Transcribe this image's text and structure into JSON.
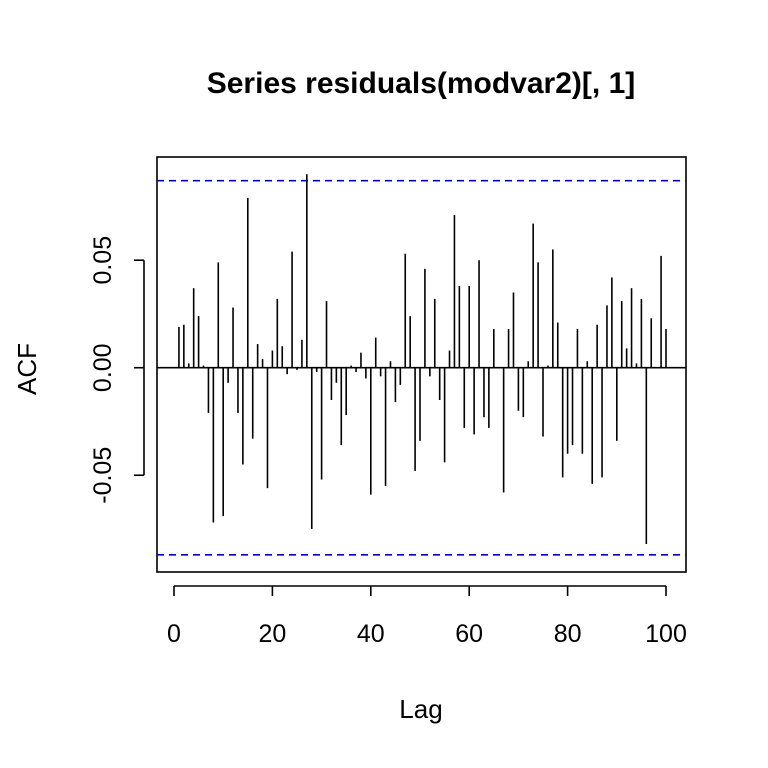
{
  "chart_data": {
    "type": "bar",
    "title": "Series residuals(modvar2)[, 1]",
    "xlabel": "Lag",
    "ylabel": "ACF",
    "xlim": [
      0,
      100
    ],
    "ylim": [
      -0.095,
      0.098
    ],
    "x_ticks": [
      0,
      20,
      40,
      60,
      80,
      100
    ],
    "x_tick_labels": [
      "0",
      "20",
      "40",
      "60",
      "80",
      "100"
    ],
    "y_ticks": [
      -0.05,
      0,
      0.05
    ],
    "y_tick_labels": [
      "-0.05",
      "0.00",
      "0.05"
    ],
    "confidence_bound": 0.087,
    "lags": [
      1,
      2,
      3,
      4,
      5,
      6,
      7,
      8,
      9,
      10,
      11,
      12,
      13,
      14,
      15,
      16,
      17,
      18,
      19,
      20,
      21,
      22,
      23,
      24,
      25,
      26,
      27,
      28,
      29,
      30,
      31,
      32,
      33,
      34,
      35,
      36,
      37,
      38,
      39,
      40,
      41,
      42,
      43,
      44,
      45,
      46,
      47,
      48,
      49,
      50,
      51,
      52,
      53,
      54,
      55,
      56,
      57,
      58,
      59,
      60,
      61,
      62,
      63,
      64,
      65,
      66,
      67,
      68,
      69,
      70,
      71,
      72,
      73,
      74,
      75,
      76,
      77,
      78,
      79,
      80,
      81,
      82,
      83,
      84,
      85,
      86,
      87,
      88,
      89,
      90,
      91,
      92,
      93,
      94,
      95,
      96,
      97,
      98,
      99,
      100
    ],
    "values": [
      0.019,
      0.02,
      0.002,
      0.037,
      0.024,
      0.001,
      -0.021,
      -0.072,
      0.049,
      -0.069,
      -0.007,
      0.028,
      -0.021,
      -0.045,
      0.079,
      -0.033,
      0.011,
      0.004,
      -0.056,
      0.008,
      0.032,
      0.01,
      -0.003,
      0.054,
      -0.001,
      0.013,
      0.09,
      -0.075,
      -0.002,
      -0.052,
      0.031,
      -0.015,
      -0.007,
      -0.036,
      -0.022,
      0.001,
      -0.002,
      0.007,
      -0.005,
      -0.059,
      0.014,
      -0.004,
      -0.055,
      0.003,
      -0.016,
      -0.008,
      0.053,
      0.024,
      -0.048,
      -0.034,
      0.046,
      -0.004,
      0.032,
      -0.015,
      -0.044,
      0.008,
      0.071,
      0.038,
      -0.028,
      0.038,
      -0.031,
      0.05,
      -0.023,
      -0.028,
      0.018,
      0.0,
      -0.058,
      0.018,
      0.035,
      -0.02,
      -0.023,
      0.003,
      0.067,
      0.049,
      -0.032,
      0.001,
      0.055,
      0.021,
      -0.051,
      -0.04,
      -0.036,
      0.018,
      -0.04,
      0.003,
      -0.054,
      0.02,
      -0.051,
      0.029,
      0.042,
      -0.034,
      0.031,
      0.009,
      0.037,
      0.002,
      0.032,
      -0.082,
      0.023,
      0.0,
      0.052,
      0.018
    ],
    "colors": {
      "bars": "#000000",
      "confidence_lines": "#0000cc",
      "axes": "#000000"
    }
  }
}
